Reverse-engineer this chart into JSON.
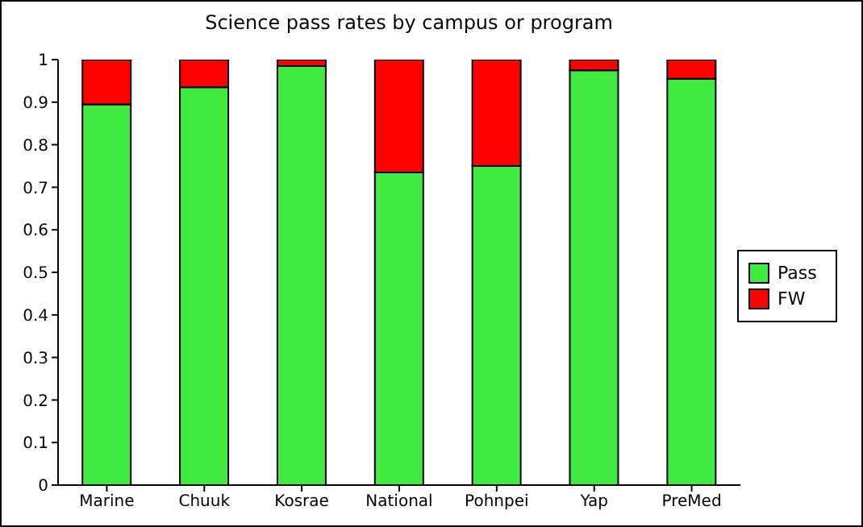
{
  "chart_data": {
    "type": "bar",
    "title": "Science pass rates by campus or program",
    "categories": [
      "Marine",
      "Chuuk",
      "Kosrae",
      "National",
      "Pohnpei",
      "Yap",
      "PreMed"
    ],
    "stacked": true,
    "series": [
      {
        "name": "Pass",
        "color": "#40ea40",
        "values": [
          0.895,
          0.935,
          0.985,
          0.735,
          0.75,
          0.975,
          0.955
        ]
      },
      {
        "name": "FW",
        "color": "#ff0000",
        "values": [
          0.105,
          0.065,
          0.015,
          0.265,
          0.25,
          0.025,
          0.045
        ]
      }
    ],
    "ylim": [
      0,
      1
    ],
    "yticks": [
      0,
      0.1,
      0.2,
      0.3,
      0.4,
      0.5,
      0.6,
      0.7,
      0.8,
      0.9,
      1
    ],
    "grid": false,
    "legend": "right"
  }
}
